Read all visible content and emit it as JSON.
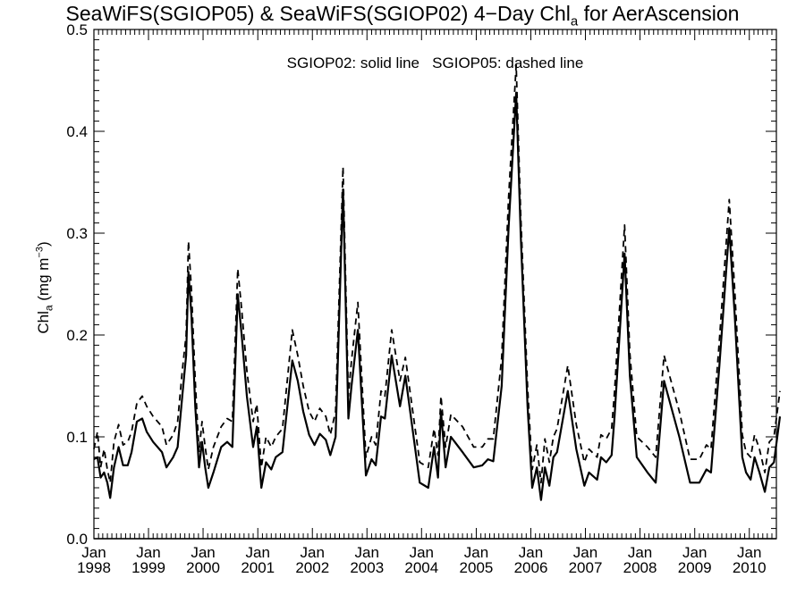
{
  "chart_data": {
    "type": "line",
    "title": {
      "prefix": "SeaWiFS(SGIOP05) & SeaWiFS(SGIOP02) 4−Day Chl",
      "subscript": "a",
      "suffix": " for AerAscension"
    },
    "annotation": "SGIOP02: solid line   SGIOP05: dashed line",
    "ylabel": {
      "main": "Chl",
      "subscript": "a",
      "unit_open": " (mg m",
      "superscript": "−3",
      "unit_close": ")"
    },
    "ylim": [
      0,
      0.5
    ],
    "yticks": [
      0.0,
      0.1,
      0.2,
      0.3,
      0.4,
      0.5
    ],
    "ytick_labels": [
      "0.0",
      "0.1",
      "0.2",
      "0.3",
      "0.4",
      "0.5"
    ],
    "xlim": [
      "1998-01",
      "2010-07"
    ],
    "xticks": [
      {
        "month": "Jan",
        "year": "1998",
        "date": "1998-01"
      },
      {
        "month": "Jan",
        "year": "1999",
        "date": "1999-01"
      },
      {
        "month": "Jan",
        "year": "2000",
        "date": "2000-01"
      },
      {
        "month": "Jan",
        "year": "2001",
        "date": "2001-01"
      },
      {
        "month": "Jan",
        "year": "2002",
        "date": "2002-01"
      },
      {
        "month": "Jan",
        "year": "2003",
        "date": "2003-01"
      },
      {
        "month": "Jan",
        "year": "2004",
        "date": "2004-01"
      },
      {
        "month": "Jan",
        "year": "2005",
        "date": "2005-01"
      },
      {
        "month": "Jan",
        "year": "2006",
        "date": "2006-01"
      },
      {
        "month": "Jan",
        "year": "2007",
        "date": "2007-01"
      },
      {
        "month": "Jan",
        "year": "2008",
        "date": "2008-01"
      },
      {
        "month": "Jan",
        "year": "2009",
        "date": "2009-01"
      },
      {
        "month": "Jan",
        "year": "2010",
        "date": "2010-01"
      }
    ],
    "grid": false,
    "series": [
      {
        "name": "SGIOP02",
        "style": "solid",
        "points": [
          [
            "1998-01-01",
            0.078
          ],
          [
            "1998-01-25",
            0.08
          ],
          [
            "1998-02-15",
            0.06
          ],
          [
            "1998-03-10",
            0.065
          ],
          [
            "1998-04-01",
            0.055
          ],
          [
            "1998-04-20",
            0.04
          ],
          [
            "1998-05-15",
            0.07
          ],
          [
            "1998-06-15",
            0.09
          ],
          [
            "1998-07-15",
            0.072
          ],
          [
            "1998-08-15",
            0.072
          ],
          [
            "1998-09-10",
            0.085
          ],
          [
            "1998-10-15",
            0.115
          ],
          [
            "1998-11-20",
            0.118
          ],
          [
            "1998-12-20",
            0.105
          ],
          [
            "1999-02-01",
            0.095
          ],
          [
            "1999-04-01",
            0.085
          ],
          [
            "1999-05-01",
            0.07
          ],
          [
            "1999-06-15",
            0.08
          ],
          [
            "1999-07-15",
            0.09
          ],
          [
            "1999-08-15",
            0.14
          ],
          [
            "1999-09-10",
            0.18
          ],
          [
            "1999-09-25",
            0.262
          ],
          [
            "1999-10-15",
            0.22
          ],
          [
            "1999-11-10",
            0.13
          ],
          [
            "1999-12-05",
            0.07
          ],
          [
            "1999-12-25",
            0.095
          ],
          [
            "2000-01-15",
            0.07
          ],
          [
            "2000-02-05",
            0.05
          ],
          [
            "2000-03-10",
            0.065
          ],
          [
            "2000-05-01",
            0.09
          ],
          [
            "2000-06-10",
            0.095
          ],
          [
            "2000-07-15",
            0.09
          ],
          [
            "2000-08-20",
            0.24
          ],
          [
            "2000-09-15",
            0.2
          ],
          [
            "2000-10-20",
            0.14
          ],
          [
            "2000-12-01",
            0.09
          ],
          [
            "2000-12-25",
            0.11
          ],
          [
            "2001-01-25",
            0.05
          ],
          [
            "2001-02-25",
            0.075
          ],
          [
            "2001-04-01",
            0.068
          ],
          [
            "2001-05-01",
            0.08
          ],
          [
            "2001-06-15",
            0.085
          ],
          [
            "2001-08-20",
            0.175
          ],
          [
            "2001-09-25",
            0.155
          ],
          [
            "2001-11-01",
            0.125
          ],
          [
            "2001-12-10",
            0.102
          ],
          [
            "2002-01-15",
            0.092
          ],
          [
            "2002-02-20",
            0.103
          ],
          [
            "2002-04-01",
            0.097
          ],
          [
            "2002-05-01",
            0.082
          ],
          [
            "2002-06-05",
            0.1
          ],
          [
            "2002-07-25",
            0.343
          ],
          [
            "2002-08-30",
            0.118
          ],
          [
            "2002-09-20",
            0.15
          ],
          [
            "2002-11-01",
            0.205
          ],
          [
            "2002-12-25",
            0.062
          ],
          [
            "2003-02-01",
            0.078
          ],
          [
            "2003-03-01",
            0.072
          ],
          [
            "2003-04-05",
            0.12
          ],
          [
            "2003-05-01",
            0.118
          ],
          [
            "2003-06-15",
            0.18
          ],
          [
            "2003-08-10",
            0.13
          ],
          [
            "2003-09-15",
            0.16
          ],
          [
            "2003-12-20",
            0.055
          ],
          [
            "2004-02-15",
            0.05
          ],
          [
            "2004-03-25",
            0.09
          ],
          [
            "2004-04-20",
            0.06
          ],
          [
            "2004-05-10",
            0.125
          ],
          [
            "2004-06-10",
            0.07
          ],
          [
            "2004-07-15",
            0.1
          ],
          [
            "2004-10-01",
            0.085
          ],
          [
            "2004-12-15",
            0.07
          ],
          [
            "2005-02-10",
            0.072
          ],
          [
            "2005-03-20",
            0.078
          ],
          [
            "2005-04-25",
            0.076
          ],
          [
            "2005-06-20",
            0.15
          ],
          [
            "2005-08-05",
            0.305
          ],
          [
            "2005-09-25",
            0.438
          ],
          [
            "2005-10-25",
            0.3
          ],
          [
            "2005-12-10",
            0.13
          ],
          [
            "2006-01-10",
            0.05
          ],
          [
            "2006-02-10",
            0.07
          ],
          [
            "2006-03-10",
            0.038
          ],
          [
            "2006-04-05",
            0.07
          ],
          [
            "2006-05-05",
            0.052
          ],
          [
            "2006-06-01",
            0.08
          ],
          [
            "2006-06-25",
            0.085
          ],
          [
            "2006-09-05",
            0.145
          ],
          [
            "2006-11-01",
            0.088
          ],
          [
            "2006-12-25",
            0.052
          ],
          [
            "2007-01-25",
            0.065
          ],
          [
            "2007-03-20",
            0.058
          ],
          [
            "2007-04-15",
            0.08
          ],
          [
            "2007-05-20",
            0.075
          ],
          [
            "2007-06-25",
            0.082
          ],
          [
            "2007-07-15",
            0.12
          ],
          [
            "2007-09-20",
            0.28
          ],
          [
            "2007-10-25",
            0.16
          ],
          [
            "2007-12-10",
            0.08
          ],
          [
            "2008-02-20",
            0.065
          ],
          [
            "2008-04-15",
            0.055
          ],
          [
            "2008-06-10",
            0.155
          ],
          [
            "2008-09-20",
            0.1
          ],
          [
            "2008-12-01",
            0.055
          ],
          [
            "2009-02-01",
            0.055
          ],
          [
            "2009-03-20",
            0.068
          ],
          [
            "2009-04-20",
            0.065
          ],
          [
            "2009-06-15",
            0.17
          ],
          [
            "2009-08-20",
            0.305
          ],
          [
            "2009-09-25",
            0.22
          ],
          [
            "2009-11-15",
            0.08
          ],
          [
            "2009-12-10",
            0.065
          ],
          [
            "2010-01-10",
            0.058
          ],
          [
            "2010-02-05",
            0.08
          ],
          [
            "2010-03-10",
            0.065
          ],
          [
            "2010-04-15",
            0.046
          ],
          [
            "2010-05-15",
            0.07
          ],
          [
            "2010-06-15",
            0.075
          ],
          [
            "2010-07-25",
            0.12
          ]
        ]
      },
      {
        "name": "SGIOP05",
        "style": "dashed",
        "points": [
          [
            "1998-01-01",
            0.088
          ],
          [
            "1998-01-25",
            0.105
          ],
          [
            "1998-02-15",
            0.07
          ],
          [
            "1998-03-10",
            0.088
          ],
          [
            "1998-04-01",
            0.068
          ],
          [
            "1998-04-20",
            0.055
          ],
          [
            "1998-05-15",
            0.095
          ],
          [
            "1998-06-15",
            0.112
          ],
          [
            "1998-07-15",
            0.092
          ],
          [
            "1998-08-15",
            0.095
          ],
          [
            "1998-09-10",
            0.105
          ],
          [
            "1998-10-15",
            0.133
          ],
          [
            "1998-11-20",
            0.14
          ],
          [
            "1998-12-20",
            0.13
          ],
          [
            "1999-02-01",
            0.12
          ],
          [
            "1999-04-01",
            0.11
          ],
          [
            "1999-05-01",
            0.092
          ],
          [
            "1999-06-15",
            0.102
          ],
          [
            "1999-07-15",
            0.115
          ],
          [
            "1999-08-15",
            0.165
          ],
          [
            "1999-09-10",
            0.2
          ],
          [
            "1999-09-25",
            0.292
          ],
          [
            "1999-10-15",
            0.245
          ],
          [
            "1999-11-10",
            0.155
          ],
          [
            "1999-12-05",
            0.085
          ],
          [
            "1999-12-25",
            0.115
          ],
          [
            "2000-01-15",
            0.09
          ],
          [
            "2000-02-05",
            0.068
          ],
          [
            "2000-03-10",
            0.09
          ],
          [
            "2000-05-01",
            0.11
          ],
          [
            "2000-06-10",
            0.118
          ],
          [
            "2000-07-15",
            0.115
          ],
          [
            "2000-08-20",
            0.265
          ],
          [
            "2000-09-15",
            0.225
          ],
          [
            "2000-10-20",
            0.165
          ],
          [
            "2000-12-01",
            0.115
          ],
          [
            "2000-12-25",
            0.132
          ],
          [
            "2001-01-25",
            0.07
          ],
          [
            "2001-02-25",
            0.1
          ],
          [
            "2001-04-01",
            0.09
          ],
          [
            "2001-05-01",
            0.1
          ],
          [
            "2001-06-15",
            0.108
          ],
          [
            "2001-08-20",
            0.205
          ],
          [
            "2001-09-25",
            0.18
          ],
          [
            "2001-11-01",
            0.15
          ],
          [
            "2001-12-10",
            0.125
          ],
          [
            "2002-01-15",
            0.115
          ],
          [
            "2002-02-20",
            0.128
          ],
          [
            "2002-04-01",
            0.12
          ],
          [
            "2002-05-01",
            0.102
          ],
          [
            "2002-06-05",
            0.125
          ],
          [
            "2002-07-25",
            0.365
          ],
          [
            "2002-08-30",
            0.14
          ],
          [
            "2002-09-20",
            0.175
          ],
          [
            "2002-11-01",
            0.232
          ],
          [
            "2002-12-25",
            0.08
          ],
          [
            "2003-02-01",
            0.1
          ],
          [
            "2003-03-01",
            0.092
          ],
          [
            "2003-04-05",
            0.145
          ],
          [
            "2003-05-01",
            0.14
          ],
          [
            "2003-06-15",
            0.205
          ],
          [
            "2003-08-10",
            0.155
          ],
          [
            "2003-09-15",
            0.178
          ],
          [
            "2003-12-20",
            0.075
          ],
          [
            "2004-02-15",
            0.07
          ],
          [
            "2004-03-25",
            0.108
          ],
          [
            "2004-04-20",
            0.082
          ],
          [
            "2004-05-10",
            0.14
          ],
          [
            "2004-06-10",
            0.09
          ],
          [
            "2004-07-15",
            0.122
          ],
          [
            "2004-10-01",
            0.11
          ],
          [
            "2004-12-15",
            0.09
          ],
          [
            "2005-02-10",
            0.09
          ],
          [
            "2005-03-20",
            0.098
          ],
          [
            "2005-04-25",
            0.098
          ],
          [
            "2005-06-20",
            0.178
          ],
          [
            "2005-08-05",
            0.335
          ],
          [
            "2005-09-25",
            0.465
          ],
          [
            "2005-10-25",
            0.32
          ],
          [
            "2005-12-10",
            0.15
          ],
          [
            "2006-01-10",
            0.068
          ],
          [
            "2006-02-10",
            0.092
          ],
          [
            "2006-03-10",
            0.055
          ],
          [
            "2006-04-05",
            0.098
          ],
          [
            "2006-05-05",
            0.075
          ],
          [
            "2006-06-01",
            0.1
          ],
          [
            "2006-06-25",
            0.108
          ],
          [
            "2006-09-05",
            0.17
          ],
          [
            "2006-11-01",
            0.112
          ],
          [
            "2006-12-25",
            0.075
          ],
          [
            "2007-01-25",
            0.088
          ],
          [
            "2007-03-20",
            0.08
          ],
          [
            "2007-04-15",
            0.102
          ],
          [
            "2007-05-20",
            0.098
          ],
          [
            "2007-06-25",
            0.108
          ],
          [
            "2007-07-15",
            0.145
          ],
          [
            "2007-09-20",
            0.308
          ],
          [
            "2007-10-25",
            0.182
          ],
          [
            "2007-12-10",
            0.1
          ],
          [
            "2008-02-20",
            0.09
          ],
          [
            "2008-04-15",
            0.08
          ],
          [
            "2008-06-10",
            0.18
          ],
          [
            "2008-09-20",
            0.125
          ],
          [
            "2008-12-01",
            0.078
          ],
          [
            "2009-02-01",
            0.078
          ],
          [
            "2009-03-20",
            0.092
          ],
          [
            "2009-04-20",
            0.088
          ],
          [
            "2009-06-15",
            0.195
          ],
          [
            "2009-08-20",
            0.333
          ],
          [
            "2009-09-25",
            0.245
          ],
          [
            "2009-11-15",
            0.102
          ],
          [
            "2009-12-10",
            0.085
          ],
          [
            "2010-01-10",
            0.08
          ],
          [
            "2010-02-05",
            0.102
          ],
          [
            "2010-03-10",
            0.088
          ],
          [
            "2010-04-15",
            0.065
          ],
          [
            "2010-05-15",
            0.095
          ],
          [
            "2010-06-15",
            0.1
          ],
          [
            "2010-07-25",
            0.145
          ]
        ]
      }
    ],
    "colors": {
      "line": "#000000",
      "background": "#ffffff"
    }
  }
}
